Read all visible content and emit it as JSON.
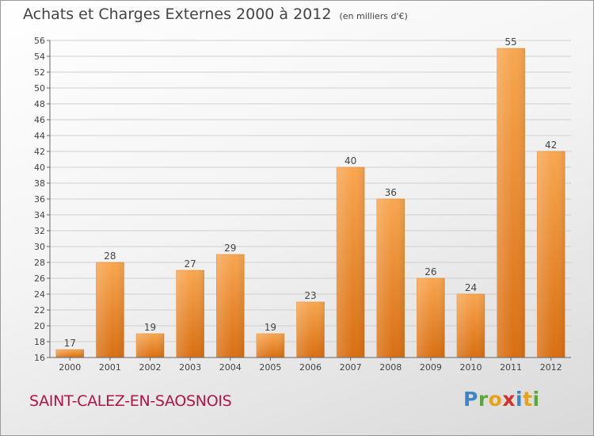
{
  "header": {
    "title": "Achats et Charges Externes 2000 à 2012",
    "subtitle": "(en milliers d'€)"
  },
  "footer": {
    "city": "SAINT-CALEZ-EN-SAOSNOIS",
    "logo_letters": [
      "P",
      "r",
      "o",
      "x",
      "i",
      "t",
      "i"
    ]
  },
  "colors": {
    "bar_light": "#f8a650",
    "bar_dark": "#d86f12",
    "city": "#b0154a"
  },
  "chart_data": {
    "type": "bar",
    "categories": [
      "2000",
      "2001",
      "2002",
      "2003",
      "2004",
      "2005",
      "2006",
      "2007",
      "2008",
      "2009",
      "2010",
      "2011",
      "2012"
    ],
    "values": [
      17,
      28,
      19,
      27,
      29,
      19,
      23,
      40,
      36,
      26,
      24,
      55,
      42
    ],
    "ylim": [
      16,
      56
    ],
    "yticks": [
      16,
      18,
      20,
      22,
      24,
      26,
      28,
      30,
      32,
      34,
      36,
      38,
      40,
      42,
      44,
      46,
      48,
      50,
      52,
      54,
      56
    ],
    "grid": true,
    "legend": "none"
  }
}
